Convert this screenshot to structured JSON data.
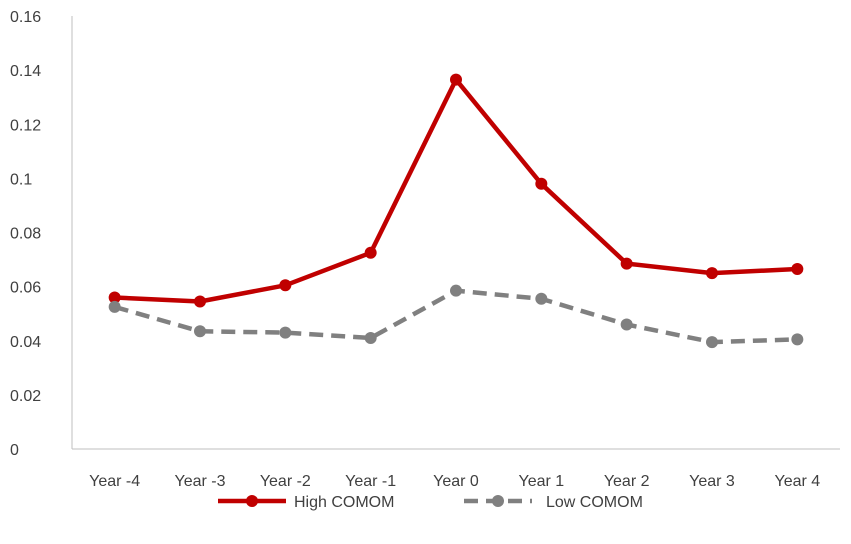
{
  "chart_data": {
    "type": "line",
    "title": "",
    "xlabel": "",
    "ylabel": "",
    "categories": [
      "Year -4",
      "Year -3",
      "Year -2",
      "Year -1",
      "Year 0",
      "Year 1",
      "Year 2",
      "Year 3",
      "Year 4"
    ],
    "y_ticks": [
      "0",
      "0.02",
      "0.04",
      "0.06",
      "0.08",
      "0.1",
      "0.12",
      "0.14",
      "0.16"
    ],
    "ylim": [
      0,
      0.16
    ],
    "grid": false,
    "legend_position": "bottom",
    "series": [
      {
        "name": "High COMOM",
        "color": "#C00000",
        "line_style": "solid",
        "values": [
          0.056,
          0.0545,
          0.0605,
          0.0725,
          0.1365,
          0.098,
          0.0685,
          0.065,
          0.0665
        ]
      },
      {
        "name": "Low COMOM",
        "color": "#808080",
        "line_style": "dashed",
        "values": [
          0.0525,
          0.0435,
          0.043,
          0.041,
          0.0585,
          0.0555,
          0.046,
          0.0395,
          0.0405
        ]
      }
    ]
  }
}
